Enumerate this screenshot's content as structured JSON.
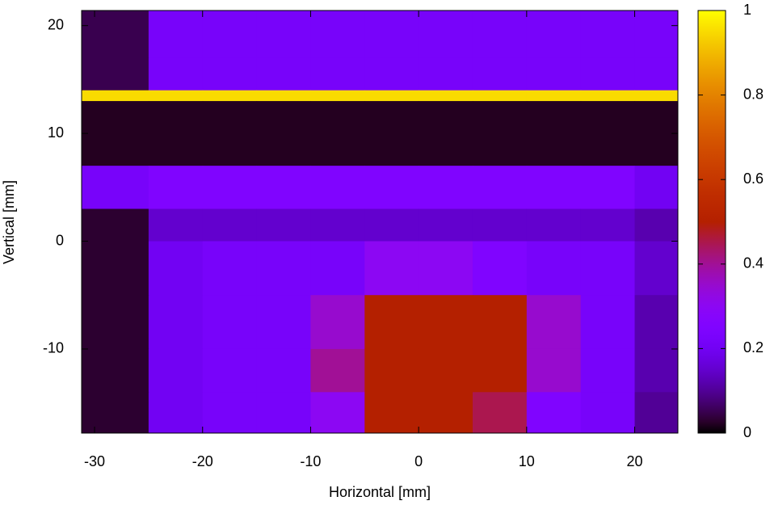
{
  "chart_data": {
    "type": "heatmap",
    "x_label": "Horizontal [mm]",
    "y_label": "Vertical [mm]",
    "x_edges": [
      -31.2,
      -25,
      -20,
      -15,
      -10,
      -5,
      0,
      5,
      10,
      15,
      20,
      24
    ],
    "y_edges": [
      21.4,
      17,
      14,
      13,
      7,
      3,
      0,
      -5,
      -10,
      -14,
      -17.8
    ],
    "values": [
      [
        0.05,
        0.22,
        0.22,
        0.22,
        0.22,
        0.22,
        0.22,
        0.22,
        0.22,
        0.22,
        0.22
      ],
      [
        0.05,
        0.22,
        0.22,
        0.22,
        0.22,
        0.22,
        0.22,
        0.22,
        0.22,
        0.22,
        0.22
      ],
      [
        0.95,
        0.95,
        0.95,
        0.95,
        0.95,
        0.95,
        0.95,
        0.95,
        0.95,
        0.95,
        0.95
      ],
      [
        0.02,
        0.02,
        0.02,
        0.02,
        0.02,
        0.02,
        0.02,
        0.02,
        0.02,
        0.02,
        0.02
      ],
      [
        0.22,
        0.25,
        0.25,
        0.25,
        0.25,
        0.25,
        0.25,
        0.25,
        0.25,
        0.25,
        0.2
      ],
      [
        0.03,
        0.15,
        0.15,
        0.15,
        0.15,
        0.15,
        0.15,
        0.15,
        0.15,
        0.15,
        0.12
      ],
      [
        0.03,
        0.2,
        0.22,
        0.22,
        0.22,
        0.3,
        0.3,
        0.25,
        0.22,
        0.22,
        0.15
      ],
      [
        0.03,
        0.2,
        0.22,
        0.22,
        0.35,
        0.5,
        0.5,
        0.5,
        0.35,
        0.22,
        0.12
      ],
      [
        0.03,
        0.2,
        0.22,
        0.22,
        0.4,
        0.5,
        0.5,
        0.5,
        0.35,
        0.22,
        0.12
      ],
      [
        0.03,
        0.2,
        0.22,
        0.22,
        0.3,
        0.5,
        0.5,
        0.45,
        0.25,
        0.22,
        0.1
      ]
    ],
    "xlim": [
      -31.2,
      24
    ],
    "ylim": [
      -17.8,
      21.4
    ],
    "xticks": [
      -30,
      -20,
      -10,
      0,
      10,
      20
    ],
    "yticks": [
      -10,
      0,
      10,
      20
    ],
    "clim": [
      0,
      1
    ],
    "cticks": [
      0,
      0.2,
      0.4,
      0.6,
      0.8,
      1
    ],
    "palette": "gnuplot-7-5-15"
  }
}
